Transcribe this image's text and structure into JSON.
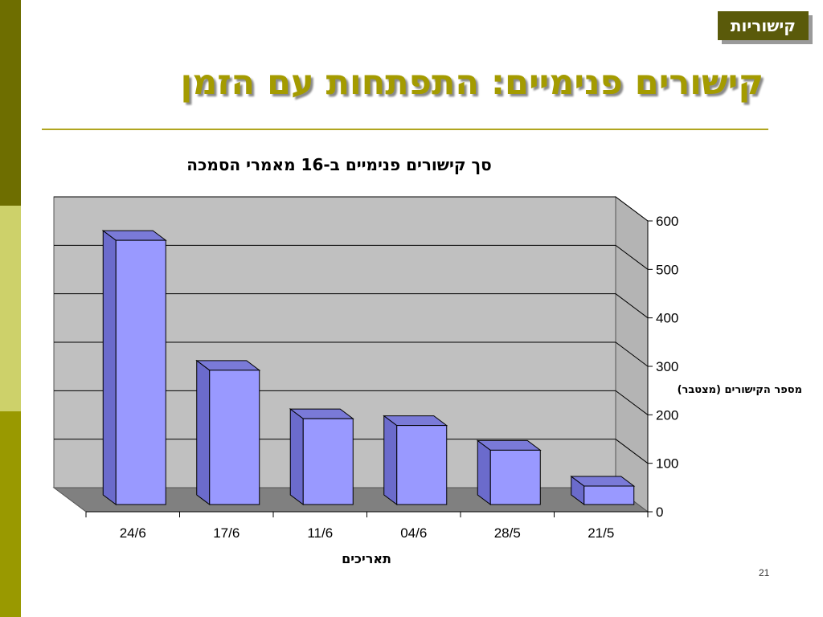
{
  "theme": {
    "side_colors": [
      "#6e6e00",
      "#cdd16a",
      "#999900"
    ],
    "title_color": "#a49b00",
    "tag_bg": "#5a5a0a",
    "bar_front": "#9999ff",
    "bar_side": "#6b6bcc",
    "bar_top": "#7a7ad8",
    "wall": "#c0c0c0",
    "floor": "#808080"
  },
  "slide": {
    "tag": "קישוריות",
    "title": "קישורים פנימיים: התפתחות עם הזמן",
    "page_number": "21"
  },
  "chart_data": {
    "type": "bar",
    "title": "סך קישורים פנימיים ב-16 מאמרי הסמכה",
    "xlabel": "תאריכים",
    "ylabel": "מספר הקישורים (מצטבר)",
    "categories": [
      "24/6",
      "17/6",
      "11/6",
      "04/6",
      "28/5",
      "21/5"
    ],
    "values": [
      560,
      292,
      192,
      178,
      127,
      53
    ],
    "ylim": [
      0,
      600
    ],
    "yticks": [
      0,
      100,
      200,
      300,
      400,
      500,
      600
    ],
    "grid": true,
    "three_d": true
  }
}
